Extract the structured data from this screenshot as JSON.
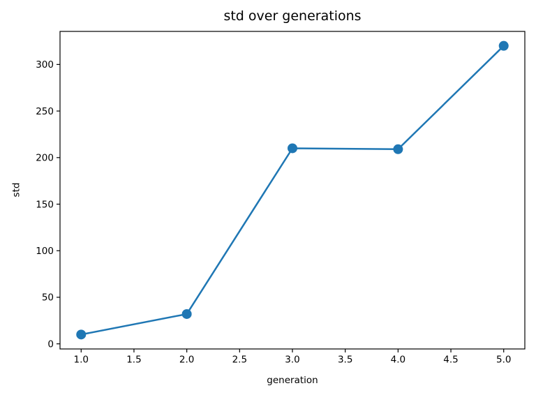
{
  "chart_data": {
    "type": "line",
    "title": "std over generations",
    "xlabel": "generation",
    "ylabel": "std",
    "x": [
      1,
      2,
      3,
      4,
      5
    ],
    "y": [
      10,
      32,
      210,
      209,
      320
    ],
    "xlim": [
      0.8,
      5.2
    ],
    "ylim": [
      -5.5,
      335.5
    ],
    "x_ticks": {
      "values": [
        1.0,
        1.5,
        2.0,
        2.5,
        3.0,
        3.5,
        4.0,
        4.5,
        5.0
      ],
      "labels": [
        "1.0",
        "1.5",
        "2.0",
        "2.5",
        "3.0",
        "3.5",
        "4.0",
        "4.5",
        "5.0"
      ]
    },
    "y_ticks": {
      "values": [
        0,
        50,
        100,
        150,
        200,
        250,
        300
      ],
      "labels": [
        "0",
        "50",
        "100",
        "150",
        "200",
        "250",
        "300"
      ]
    },
    "line_color": "#1f77b4",
    "marker": "circle",
    "grid": false,
    "legend": null
  }
}
